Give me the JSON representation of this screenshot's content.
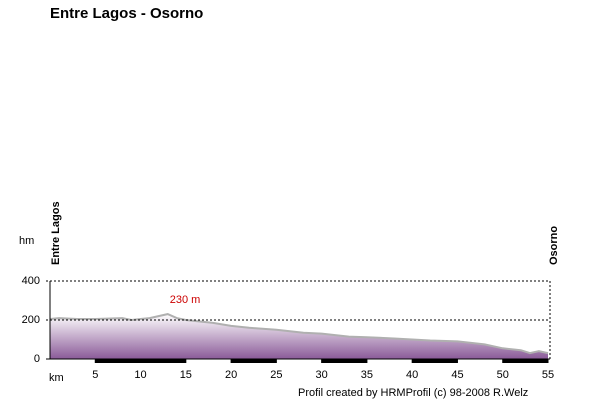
{
  "chart_data": {
    "type": "area",
    "title": "Entre Lagos - Osorno",
    "y_label": "hm",
    "x_label": "km",
    "start_label": "Entre Lagos",
    "end_label": "Osorno",
    "footer": "Profil created by HRMProfil (c) 98-2008 R.Welz",
    "annotation": {
      "text": "230 m",
      "x": 13,
      "y": 230
    },
    "x": [
      0,
      1,
      3,
      5,
      8,
      9,
      10,
      11,
      13,
      14,
      15,
      18,
      20,
      22,
      25,
      28,
      30,
      33,
      35,
      38,
      40,
      42,
      45,
      47,
      48,
      50,
      52,
      53,
      54,
      55
    ],
    "series": [
      {
        "color": "#8a5a98",
        "values": [
          205,
          210,
          205,
          205,
          210,
          200,
          205,
          210,
          230,
          210,
          200,
          185,
          170,
          160,
          150,
          135,
          130,
          115,
          112,
          105,
          100,
          95,
          90,
          80,
          75,
          55,
          45,
          30,
          40,
          30
        ]
      }
    ],
    "xlim": [
      0,
      55
    ],
    "xticks": [
      5,
      10,
      15,
      20,
      25,
      30,
      35,
      40,
      45,
      50,
      55
    ],
    "ylim": [
      0,
      400
    ],
    "yticks": [
      0,
      200,
      400
    ],
    "grid": true
  }
}
